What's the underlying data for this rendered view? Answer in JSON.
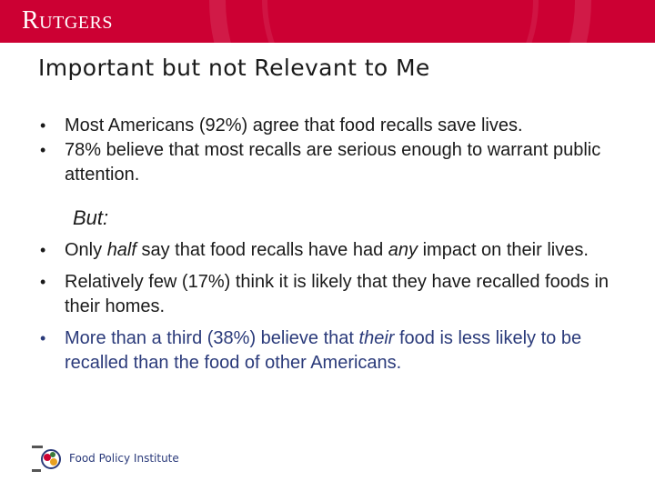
{
  "header": {
    "logo": "Rutgers",
    "background_color": "#cc0033"
  },
  "slide": {
    "title": "Important but not Relevant to Me",
    "bullets_1": [
      {
        "text": "Most Americans (92%) agree that food recalls save lives."
      },
      {
        "text": "78% believe that most recalls are serious enough to warrant public attention."
      }
    ],
    "but_label": "But:",
    "bullets_2": [
      {
        "parts": [
          "Only ",
          "half",
          " say that food recalls have had ",
          "any",
          " impact on their lives."
        ]
      },
      {
        "parts": [
          "Relatively few (17%) think it is likely that they have recalled foods in their homes."
        ]
      },
      {
        "parts": [
          "More than a third (38%) believe that ",
          "their",
          " food is less likely to be recalled than the food of other Americans."
        ]
      }
    ]
  },
  "footer": {
    "label": "Food Policy Institute",
    "logo_icon": "food-policy-institute-logo-icon"
  }
}
